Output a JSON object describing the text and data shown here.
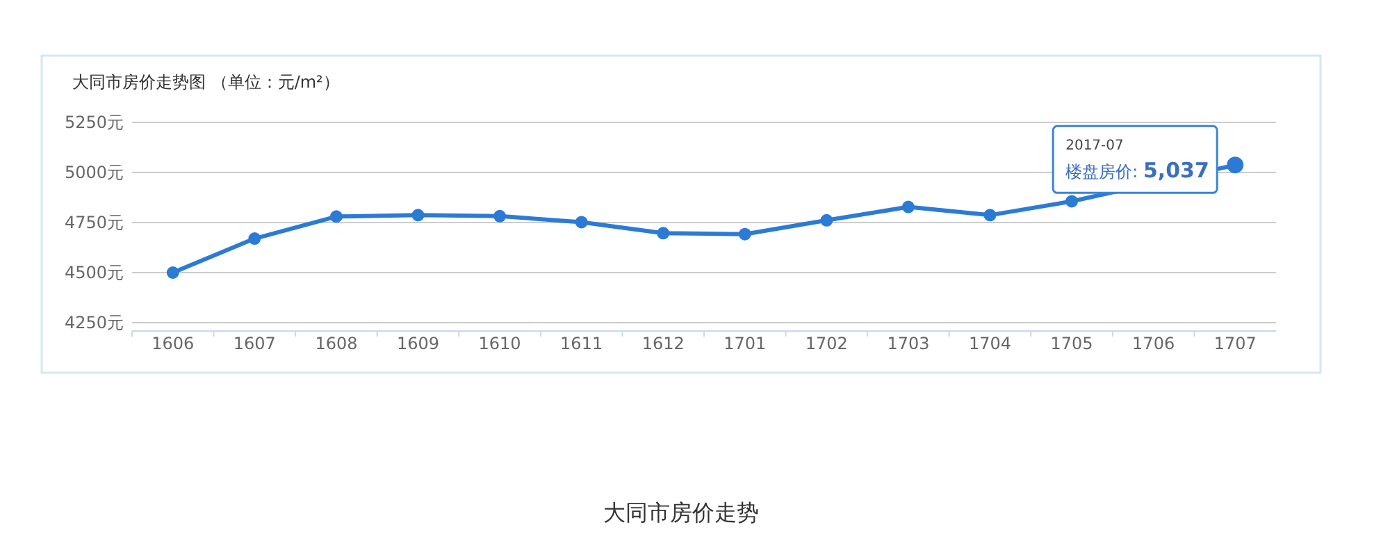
{
  "chart_data": {
    "type": "line",
    "title": "大同市房价走势图 （单位：元/m²）",
    "categories": [
      "1606",
      "1607",
      "1608",
      "1609",
      "1610",
      "1611",
      "1612",
      "1701",
      "1702",
      "1703",
      "1704",
      "1705",
      "1706",
      "1707"
    ],
    "series": [
      {
        "color": "#2b7bd6",
        "values": [
          4500,
          4670,
          4780,
          4787,
          4782,
          4752,
          4697,
          4692,
          4761,
          4828,
          4787,
          4856,
          null,
          5037
        ]
      }
    ],
    "ylim": [
      4250,
      5250
    ],
    "yticks": [
      {
        "value": 4250,
        "label": "4250元"
      },
      {
        "value": 4500,
        "label": "4500元"
      },
      {
        "value": 4750,
        "label": "4750元"
      },
      {
        "value": 5000,
        "label": "5000元"
      },
      {
        "value": 5250,
        "label": "5250元"
      }
    ],
    "grid": "y",
    "marker": "circle",
    "line_style": "solid",
    "annotations": [
      "2017-07",
      "楼盘房价: **5,037**",
      "大同市房价走势"
    ]
  }
}
